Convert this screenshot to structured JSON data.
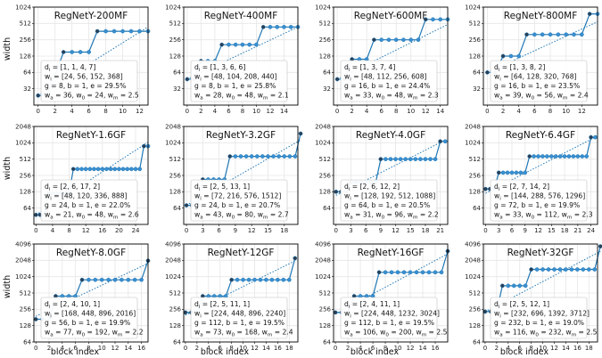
{
  "figure": {
    "ylabel": "width",
    "xlabel": "block index"
  },
  "colors": {
    "line": "#1f77b4",
    "marker_fill": "#3a8fd0",
    "endpoint_fill": "#2a3f55",
    "grid": "#e6e6e6",
    "frame": "#000000"
  },
  "chart_data": [
    {
      "type": "line",
      "title": "RegNetY-200MF",
      "y_scale": "log2",
      "yticks": [
        32,
        64,
        128,
        256,
        512,
        1024
      ],
      "ylim": [
        16,
        1024
      ],
      "xticks": [
        0,
        2,
        4,
        6,
        8,
        10,
        12
      ],
      "xlim": [
        -0.5,
        13
      ],
      "depths": [
        1,
        1,
        4,
        7
      ],
      "stage_widths": [
        24,
        56,
        152,
        368
      ],
      "start_width": 24,
      "linear_fit": [
        24,
        441
      ],
      "annotation": [
        "d_i = [1, 1, 4, 7]",
        "w_i = [24, 56, 152, 368]",
        "g = 8, b = 1, e = 29.5%",
        "w_a = 36, w_0 = 24, w_m = 2.5"
      ]
    },
    {
      "type": "line",
      "title": "RegNetY-400MF",
      "y_scale": "log2",
      "yticks": [
        32,
        64,
        128,
        256,
        512,
        1024
      ],
      "ylim": [
        16,
        1024
      ],
      "xticks": [
        0,
        2,
        4,
        6,
        8,
        10,
        12,
        14
      ],
      "xlim": [
        -0.5,
        16
      ],
      "depths": [
        1,
        3,
        6,
        6
      ],
      "stage_widths": [
        48,
        104,
        208,
        440
      ],
      "start_width": 48,
      "linear_fit": [
        48,
        440
      ],
      "annotation": [
        "d_i = [1, 3, 6, 6]",
        "w_i = [48, 104, 208, 440]",
        "g = 8, b = 1, e = 25.8%",
        "w_a = 28, w_0 = 48, w_m = 2.1"
      ]
    },
    {
      "type": "line",
      "title": "RegNetY-600MF",
      "y_scale": "log2",
      "yticks": [
        32,
        64,
        128,
        256,
        512,
        1024
      ],
      "ylim": [
        16,
        1024
      ],
      "xticks": [
        0,
        2,
        4,
        6,
        8,
        10,
        12,
        14
      ],
      "xlim": [
        -0.5,
        15
      ],
      "depths": [
        1,
        3,
        7,
        4
      ],
      "stage_widths": [
        48,
        112,
        256,
        608
      ],
      "start_width": 48,
      "linear_fit": [
        48,
        490
      ],
      "annotation": [
        "d_i = [1, 3, 7, 4]",
        "w_i = [48, 112, 256, 608]",
        "g = 16, b = 1, e = 24.4%",
        "w_a = 33, w_0 = 48, w_m = 2.3"
      ]
    },
    {
      "type": "line",
      "title": "RegNetY-800MF",
      "y_scale": "log2",
      "yticks": [
        32,
        64,
        128,
        256,
        512,
        1024
      ],
      "ylim": [
        16,
        1024
      ],
      "xticks": [
        0,
        2,
        4,
        6,
        8,
        10,
        12
      ],
      "xlim": [
        -0.5,
        14
      ],
      "depths": [
        1,
        3,
        8,
        2
      ],
      "stage_widths": [
        64,
        128,
        320,
        768
      ],
      "start_width": 64,
      "linear_fit": [
        64,
        550
      ],
      "annotation": [
        "d_i = [1, 3, 8, 2]",
        "w_i = [64, 128, 320, 768]",
        "g = 16, b = 1, e = 23.5%",
        "w_a = 39, w_0 = 56, w_m = 2.4"
      ]
    },
    {
      "type": "line",
      "title": "RegNetY-1.6GF",
      "y_scale": "log2",
      "yticks": [
        64,
        128,
        256,
        512,
        1024,
        2048
      ],
      "ylim": [
        32,
        2048
      ],
      "xticks": [
        0,
        4,
        8,
        12,
        16,
        20,
        24
      ],
      "xlim": [
        -0.5,
        27
      ],
      "depths": [
        2,
        6,
        17,
        2
      ],
      "stage_widths": [
        48,
        120,
        336,
        888
      ],
      "start_width": 48,
      "linear_fit": [
        48,
        1050
      ],
      "annotation": [
        "d_i = [2, 6, 17, 2]",
        "w_i = [48, 120, 336, 888]",
        "g = 24, b = 1, e = 22.0%",
        "w_a = 21, w_0 = 48, w_m = 2.6"
      ]
    },
    {
      "type": "line",
      "title": "RegNetY-3.2GF",
      "y_scale": "log2",
      "yticks": [
        64,
        128,
        256,
        512,
        1024,
        2048
      ],
      "ylim": [
        32,
        2048
      ],
      "xticks": [
        0,
        3,
        6,
        9,
        12,
        15,
        18
      ],
      "xlim": [
        -0.5,
        20.5
      ],
      "depths": [
        2,
        5,
        13,
        1
      ],
      "stage_widths": [
        72,
        216,
        576,
        1512
      ],
      "start_width": 72,
      "linear_fit": [
        72,
        1150
      ],
      "annotation": [
        "d_i = [2, 5, 13, 1]",
        "w_i = [72, 216, 576, 1512]",
        "g = 24, b = 1, e = 20.7%",
        "w_a = 43, w_0 = 80, w_m = 2.7"
      ]
    },
    {
      "type": "line",
      "title": "RegNetY-4.0GF",
      "y_scale": "log2",
      "yticks": [
        64,
        128,
        256,
        512,
        1024,
        2048
      ],
      "ylim": [
        32,
        2048
      ],
      "xticks": [
        0,
        3,
        6,
        9,
        12,
        15,
        18,
        21
      ],
      "xlim": [
        -0.5,
        22.5
      ],
      "depths": [
        2,
        6,
        12,
        2
      ],
      "stage_widths": [
        128,
        192,
        512,
        1088
      ],
      "start_width": 128,
      "linear_fit": [
        110,
        1150
      ],
      "annotation": [
        "d_i = [2, 6, 12, 2]",
        "w_i = [128, 192, 512, 1088]",
        "g = 64, b = 1, e = 20.5%",
        "w_a = 31, w_0 = 96, w_m = 2.2"
      ]
    },
    {
      "type": "line",
      "title": "RegNetY-6.4GF",
      "y_scale": "log2",
      "yticks": [
        64,
        128,
        256,
        512,
        1024,
        2048
      ],
      "ylim": [
        32,
        2048
      ],
      "xticks": [
        0,
        3,
        6,
        9,
        12,
        15,
        18,
        21,
        24
      ],
      "xlim": [
        -0.5,
        25.5
      ],
      "depths": [
        2,
        7,
        14,
        2
      ],
      "stage_widths": [
        144,
        288,
        576,
        1296
      ],
      "start_width": 144,
      "linear_fit": [
        120,
        1300
      ],
      "annotation": [
        "d_i = [2, 7, 14, 2]",
        "w_i = [144, 288, 576, 1296]",
        "g = 72, b = 1, e = 19.9%",
        "w_a = 33, w_0 = 112, w_m = 2.3"
      ]
    },
    {
      "type": "line",
      "title": "RegNetY-8.0GF",
      "y_scale": "log2",
      "yticks": [
        64,
        128,
        256,
        512,
        1024,
        2048,
        4096
      ],
      "ylim": [
        64,
        4096
      ],
      "xticks": [
        0,
        2,
        4,
        6,
        8,
        10,
        12,
        14,
        16
      ],
      "xlim": [
        -0.3,
        17
      ],
      "depths": [
        2,
        4,
        10,
        1
      ],
      "stage_widths": [
        168,
        448,
        896,
        2016
      ],
      "start_width": 168,
      "linear_fit": [
        190,
        1800
      ],
      "annotation": [
        "d_i = [2, 4, 10, 1]",
        "w_i = [168, 448, 896, 2016]",
        "g = 56, b = 1, e = 19.9%",
        "w_a = 77, w_0 = 192, w_m = 2.2"
      ]
    },
    {
      "type": "line",
      "title": "RegNetY-12GF",
      "y_scale": "log2",
      "yticks": [
        64,
        128,
        256,
        512,
        1024,
        2048,
        4096
      ],
      "ylim": [
        64,
        4096
      ],
      "xticks": [
        0,
        2,
        4,
        6,
        8,
        10,
        12,
        14,
        16,
        18
      ],
      "xlim": [
        -0.3,
        19.5
      ],
      "depths": [
        2,
        5,
        11,
        1
      ],
      "stage_widths": [
        224,
        448,
        896,
        2240
      ],
      "start_width": 224,
      "linear_fit": [
        200,
        2000
      ],
      "annotation": [
        "d_i = [2, 5, 11, 1]",
        "w_i = [224, 448, 896, 2240]",
        "g = 112, b = 1, e = 19.5%",
        "w_a = 73, w_0 = 168, w_m = 2.4"
      ]
    },
    {
      "type": "line",
      "title": "RegNetY-16GF",
      "y_scale": "log2",
      "yticks": [
        64,
        128,
        256,
        512,
        1024,
        2048,
        4096
      ],
      "ylim": [
        64,
        4096
      ],
      "xticks": [
        0,
        2,
        4,
        6,
        8,
        10,
        12,
        14,
        16
      ],
      "xlim": [
        -0.3,
        18
      ],
      "depths": [
        2,
        4,
        11,
        1
      ],
      "stage_widths": [
        224,
        448,
        1232,
        3024
      ],
      "start_width": 224,
      "linear_fit": [
        210,
        2700
      ],
      "annotation": [
        "d_i = [2, 4, 11, 1]",
        "w_i = [224, 448, 1232, 3024]",
        "g = 112, b = 1, e = 19.5%",
        "w_a = 106, w_0 = 200, w_m = 2.5"
      ]
    },
    {
      "type": "line",
      "title": "RegNetY-32GF",
      "y_scale": "log2",
      "yticks": [
        64,
        128,
        256,
        512,
        1024,
        2048,
        4096
      ],
      "ylim": [
        64,
        4096
      ],
      "xticks": [
        0,
        2,
        4,
        6,
        8,
        10,
        12,
        14,
        16,
        18
      ],
      "xlim": [
        -0.3,
        19.5
      ],
      "depths": [
        2,
        5,
        12,
        1
      ],
      "stage_widths": [
        232,
        696,
        1392,
        3712
      ],
      "start_width": 232,
      "linear_fit": [
        230,
        3000
      ],
      "annotation": [
        "d_i = [2, 5, 12, 1]",
        "w_i = [232, 696, 1392, 3712]",
        "g = 232, b = 1, e = 19.0%",
        "w_a = 116, w_0 = 232, w_m = 2.5"
      ]
    }
  ]
}
